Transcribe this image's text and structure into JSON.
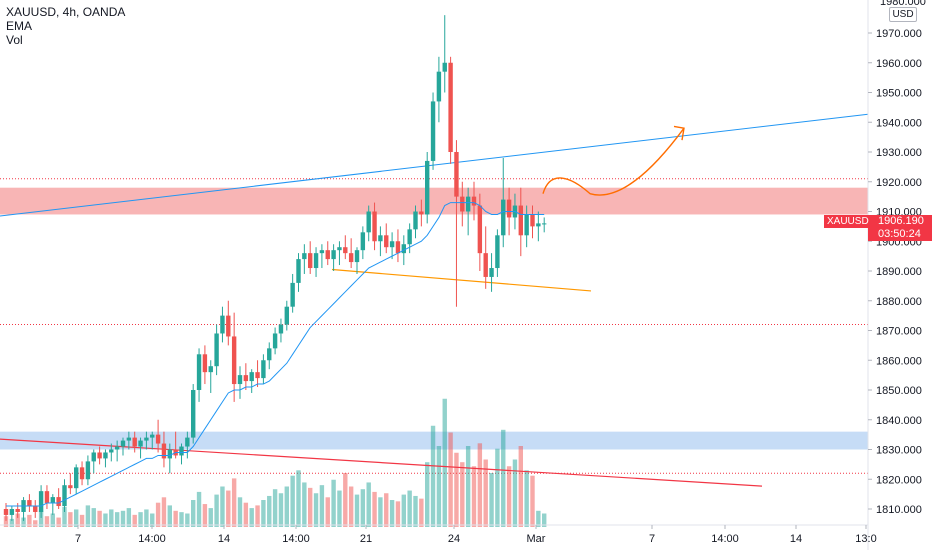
{
  "header": {
    "symbol_line": "XAUUSD, 4h, OANDA",
    "indicator_1": "EMA",
    "indicator_2": "Vol"
  },
  "price_axis": {
    "currency": "USD",
    "top_label": "1980.000"
  },
  "price_tag": {
    "symbol": "XAUUSD",
    "price": "1906.190",
    "countdown": "03:50:24"
  },
  "colors": {
    "up": "#26a69a",
    "down": "#ef5350",
    "ema": "#2196f3",
    "zone_red": "#f7a8a8",
    "zone_blue": "#bcd6f5",
    "trend_red": "#f23645",
    "trend_orange": "#ff9800",
    "arrow": "#ff6d00"
  },
  "chart_data": {
    "type": "candlestick",
    "ylim": [
      1805,
      1980
    ],
    "y_ticks": [
      1810,
      1820,
      1830,
      1840,
      1850,
      1860,
      1870,
      1880,
      1890,
      1900,
      1910,
      1920,
      1930,
      1940,
      1950,
      1960,
      1970
    ],
    "y_tick_labels": [
      "1810.000",
      "1820.000",
      "1830.000",
      "1840.000",
      "1850.000",
      "1860.000",
      "1870.000",
      "1880.000",
      "1890.000",
      "1900.000",
      "1910.000",
      "1920.000",
      "1930.000",
      "1940.000",
      "1950.000",
      "1960.000",
      "1970.000"
    ],
    "x_ticks": [
      "7",
      "14:00",
      "14",
      "14:00",
      "21",
      "24",
      "Mar",
      "7",
      "14:00",
      "14",
      "13:0"
    ],
    "candles": [
      [
        1810,
        1812,
        1806,
        1808
      ],
      [
        1808,
        1811,
        1806,
        1810
      ],
      [
        1810,
        1812,
        1807,
        1809
      ],
      [
        1809,
        1814,
        1806,
        1813
      ],
      [
        1813,
        1815,
        1809,
        1811
      ],
      [
        1811,
        1813,
        1807,
        1809
      ],
      [
        1809,
        1818,
        1807,
        1816
      ],
      [
        1816,
        1818,
        1810,
        1812
      ],
      [
        1812,
        1815,
        1808,
        1814
      ],
      [
        1814,
        1817,
        1810,
        1811
      ],
      [
        1811,
        1820,
        1809,
        1818
      ],
      [
        1818,
        1822,
        1815,
        1817
      ],
      [
        1817,
        1825,
        1815,
        1824
      ],
      [
        1824,
        1826,
        1818,
        1820
      ],
      [
        1820,
        1828,
        1818,
        1826
      ],
      [
        1826,
        1830,
        1822,
        1829
      ],
      [
        1829,
        1831,
        1825,
        1827
      ],
      [
        1827,
        1830,
        1824,
        1829
      ],
      [
        1829,
        1832,
        1826,
        1830
      ],
      [
        1830,
        1833,
        1826,
        1831
      ],
      [
        1831,
        1834,
        1828,
        1833
      ],
      [
        1833,
        1836,
        1830,
        1834
      ],
      [
        1834,
        1836,
        1829,
        1831
      ],
      [
        1831,
        1834,
        1827,
        1833
      ],
      [
        1833,
        1836,
        1830,
        1834
      ],
      [
        1834,
        1836,
        1830,
        1835
      ],
      [
        1835,
        1840,
        1829,
        1832
      ],
      [
        1832,
        1836,
        1824,
        1827
      ],
      [
        1827,
        1832,
        1822,
        1830
      ],
      [
        1830,
        1836,
        1827,
        1828
      ],
      [
        1828,
        1832,
        1825,
        1831
      ],
      [
        1831,
        1836,
        1827,
        1834
      ],
      [
        1834,
        1852,
        1832,
        1850
      ],
      [
        1850,
        1864,
        1846,
        1862
      ],
      [
        1862,
        1865,
        1852,
        1856
      ],
      [
        1856,
        1860,
        1849,
        1858
      ],
      [
        1858,
        1872,
        1855,
        1869
      ],
      [
        1869,
        1878,
        1866,
        1875
      ],
      [
        1875,
        1880,
        1865,
        1868
      ],
      [
        1868,
        1876,
        1846,
        1852
      ],
      [
        1852,
        1858,
        1847,
        1855
      ],
      [
        1855,
        1859,
        1850,
        1853
      ],
      [
        1853,
        1857,
        1849,
        1856
      ],
      [
        1856,
        1860,
        1851,
        1854
      ],
      [
        1854,
        1862,
        1852,
        1860
      ],
      [
        1860,
        1866,
        1857,
        1864
      ],
      [
        1864,
        1871,
        1862,
        1869
      ],
      [
        1869,
        1874,
        1866,
        1872
      ],
      [
        1872,
        1880,
        1870,
        1878
      ],
      [
        1878,
        1889,
        1876,
        1886
      ],
      [
        1886,
        1896,
        1883,
        1894
      ],
      [
        1894,
        1899,
        1889,
        1896
      ],
      [
        1896,
        1900,
        1889,
        1891
      ],
      [
        1891,
        1898,
        1888,
        1896
      ],
      [
        1896,
        1899,
        1891,
        1897
      ],
      [
        1897,
        1900,
        1892,
        1894
      ],
      [
        1894,
        1899,
        1890,
        1897
      ],
      [
        1897,
        1900,
        1892,
        1898
      ],
      [
        1898,
        1902,
        1894,
        1896
      ],
      [
        1896,
        1901,
        1891,
        1893
      ],
      [
        1893,
        1898,
        1889,
        1897
      ],
      [
        1897,
        1905,
        1894,
        1903
      ],
      [
        1903,
        1912,
        1900,
        1910
      ],
      [
        1910,
        1913,
        1897,
        1900
      ],
      [
        1900,
        1905,
        1895,
        1902
      ],
      [
        1902,
        1906,
        1896,
        1898
      ],
      [
        1898,
        1903,
        1894,
        1900
      ],
      [
        1900,
        1904,
        1893,
        1896
      ],
      [
        1896,
        1902,
        1892,
        1899
      ],
      [
        1899,
        1906,
        1896,
        1904
      ],
      [
        1904,
        1912,
        1901,
        1910
      ],
      [
        1910,
        1914,
        1905,
        1909
      ],
      [
        1909,
        1930,
        1906,
        1927
      ],
      [
        1927,
        1950,
        1924,
        1947
      ],
      [
        1947,
        1962,
        1940,
        1957
      ],
      [
        1957,
        1976,
        1950,
        1960
      ],
      [
        1960,
        1962,
        1926,
        1930
      ],
      [
        1930,
        1934,
        1878,
        1915
      ],
      [
        1915,
        1920,
        1905,
        1910
      ],
      [
        1910,
        1918,
        1902,
        1915
      ],
      [
        1915,
        1920,
        1907,
        1912
      ],
      [
        1912,
        1916,
        1890,
        1896
      ],
      [
        1896,
        1905,
        1884,
        1888
      ],
      [
        1888,
        1896,
        1883,
        1891
      ],
      [
        1891,
        1904,
        1888,
        1902
      ],
      [
        1902,
        1928,
        1898,
        1914
      ],
      [
        1914,
        1918,
        1902,
        1908
      ],
      [
        1908,
        1916,
        1904,
        1912
      ],
      [
        1912,
        1918,
        1895,
        1902
      ],
      [
        1902,
        1912,
        1898,
        1909
      ],
      [
        1909,
        1912,
        1901,
        1905
      ],
      [
        1905,
        1910,
        1900,
        1906
      ],
      [
        1906,
        1908,
        1903,
        1906
      ]
    ],
    "ema": [
      1811,
      1811,
      1811,
      1811,
      1811,
      1811,
      1811,
      1812,
      1812,
      1812,
      1813,
      1814,
      1815,
      1816,
      1817,
      1818,
      1819,
      1820,
      1821,
      1822,
      1823,
      1824,
      1825,
      1826,
      1827,
      1827,
      1828,
      1828,
      1828,
      1829,
      1829,
      1829,
      1831,
      1834,
      1837,
      1840,
      1843,
      1846,
      1849,
      1850,
      1850,
      1851,
      1851,
      1852,
      1852,
      1853,
      1855,
      1857,
      1859,
      1862,
      1865,
      1868,
      1871,
      1873,
      1875,
      1877,
      1879,
      1881,
      1883,
      1885,
      1887,
      1889,
      1891,
      1892,
      1893,
      1894,
      1895,
      1896,
      1897,
      1898,
      1899,
      1900,
      1902,
      1905,
      1908,
      1912,
      1913,
      1913,
      1913,
      1913,
      1913,
      1912,
      1910,
      1909,
      1909,
      1910,
      1910,
      1910,
      1909,
      1909,
      1909,
      1909,
      1909
    ],
    "volume": [
      8,
      6,
      10,
      7,
      9,
      5,
      12,
      8,
      10,
      7,
      15,
      11,
      13,
      9,
      16,
      14,
      12,
      10,
      13,
      11,
      12,
      14,
      9,
      11,
      13,
      10,
      18,
      22,
      16,
      12,
      11,
      10,
      20,
      26,
      17,
      14,
      24,
      30,
      27,
      36,
      22,
      18,
      14,
      16,
      20,
      23,
      28,
      25,
      30,
      38,
      42,
      33,
      29,
      25,
      31,
      22,
      35,
      27,
      40,
      30,
      24,
      28,
      33,
      26,
      22,
      25,
      20,
      19,
      24,
      27,
      23,
      21,
      48,
      75,
      60,
      95,
      70,
      55,
      48,
      60,
      45,
      62,
      50,
      40,
      58,
      72,
      45,
      50,
      60,
      42,
      38,
      12,
      10
    ],
    "vol_max": 100,
    "zones": [
      {
        "name": "resistance-zone",
        "y1": 1909,
        "y2": 1918
      },
      {
        "name": "support-zone",
        "y1": 1830,
        "y2": 1836
      }
    ],
    "dotted_levels": [
      1921,
      1872,
      1822
    ],
    "arrow_path_prices": [
      1916,
      1917,
      1916,
      1918,
      1938
    ],
    "series": []
  }
}
